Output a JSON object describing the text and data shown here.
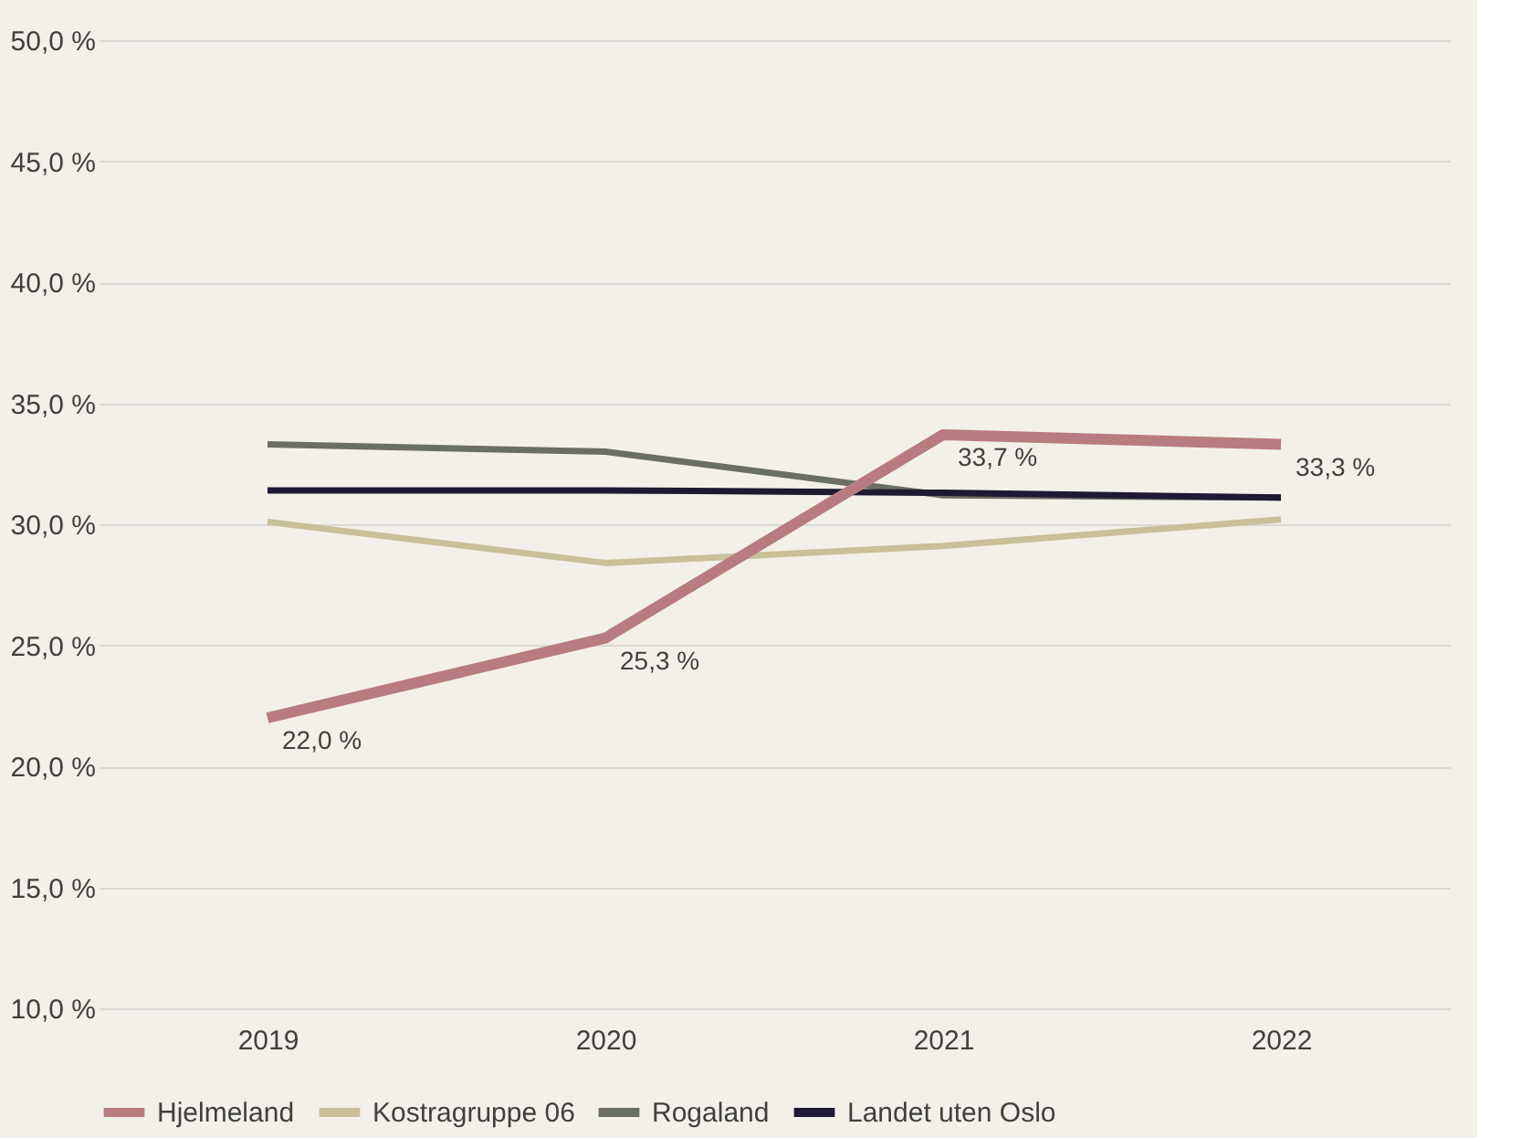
{
  "chart_data": {
    "type": "line",
    "categories": [
      "2019",
      "2020",
      "2021",
      "2022"
    ],
    "ylim": [
      10,
      50
    ],
    "yticks": [
      {
        "value": 10,
        "label": "10,0 %"
      },
      {
        "value": 15,
        "label": "15,0 %"
      },
      {
        "value": 20,
        "label": "20,0 %"
      },
      {
        "value": 25,
        "label": "25,0 %"
      },
      {
        "value": 30,
        "label": "30,0 %"
      },
      {
        "value": 35,
        "label": "35,0 %"
      },
      {
        "value": 40,
        "label": "40,0 %"
      },
      {
        "value": 45,
        "label": "45,0 %"
      },
      {
        "value": 50,
        "label": "50,0 %"
      }
    ],
    "grid": "y",
    "legend": "bottom",
    "line_style": "solid",
    "marker": "none",
    "series": [
      {
        "name": "Hjelmeland",
        "color": "#b87b80",
        "values": [
          22.0,
          25.3,
          33.7,
          33.3
        ],
        "value_labels": [
          "22,0 %",
          "25,3 %",
          "33,7 %",
          "33,3 %"
        ]
      },
      {
        "name": "Kostragruppe 06",
        "color": "#c9c09a",
        "values": [
          30.1,
          28.4,
          29.1,
          30.2
        ]
      },
      {
        "name": "Rogaland",
        "color": "#6b6e62",
        "values": [
          33.3,
          33.0,
          31.2,
          31.1
        ]
      },
      {
        "name": "Landet uten Oslo",
        "color": "#1e1a33",
        "values": [
          31.4,
          31.4,
          31.3,
          31.1
        ]
      }
    ]
  }
}
